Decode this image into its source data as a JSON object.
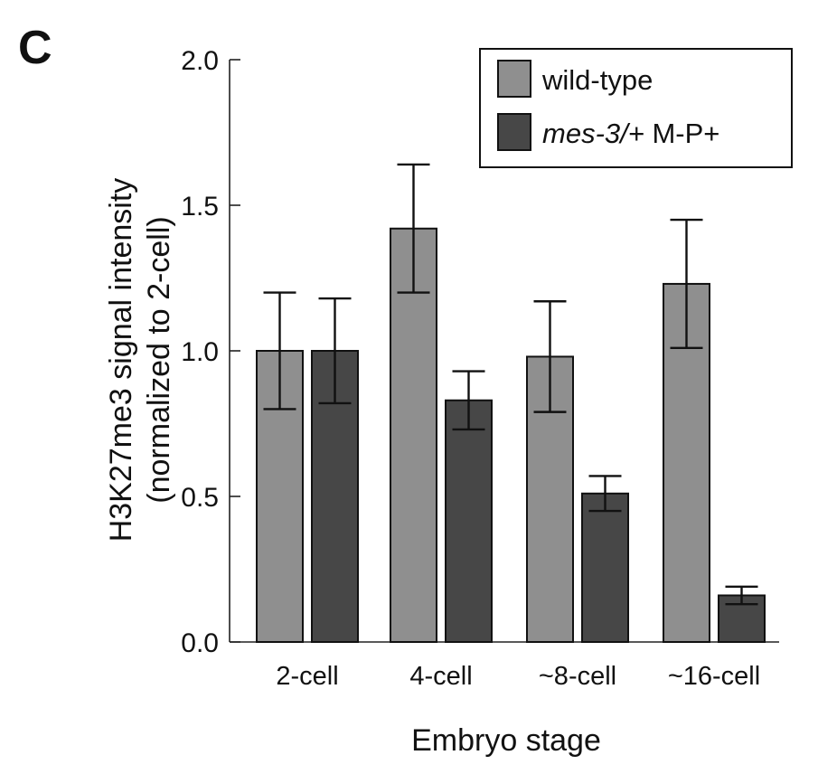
{
  "panel_label": "C",
  "chart_data": {
    "type": "bar",
    "title": "",
    "xlabel": "Embryo stage",
    "ylabel_line1": "H3K27me3 signal intensity",
    "ylabel_line2": "(normalized to 2-cell)",
    "categories": [
      "2-cell",
      "4-cell",
      "~8-cell",
      "~16-cell"
    ],
    "ylim": [
      0,
      2.0
    ],
    "yticks": [
      "0.0",
      "0.5",
      "1.0",
      "1.5",
      "2.0"
    ],
    "ytick_values": [
      0,
      0.5,
      1.0,
      1.5,
      2.0
    ],
    "series": [
      {
        "name": "wild-type",
        "color": "#8f8f8f",
        "values": [
          1.0,
          1.42,
          0.98,
          1.23
        ],
        "error": [
          0.2,
          0.22,
          0.19,
          0.22
        ]
      },
      {
        "name_italic": "mes-3/+",
        "name_rest": " M-P+",
        "color": "#474747",
        "values": [
          1.0,
          0.83,
          0.51,
          0.16
        ],
        "error": [
          0.18,
          0.1,
          0.06,
          0.03
        ]
      }
    ],
    "grid": false,
    "legend_position": "top-right"
  }
}
